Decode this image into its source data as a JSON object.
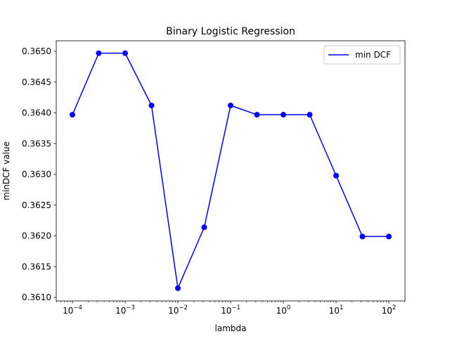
{
  "chart_data": {
    "type": "line",
    "title": "Binary Logistic Regression",
    "xlabel": "lambda",
    "ylabel": "minDCF value",
    "x_scale": "log",
    "x_tick_base": "10",
    "x_tick_exponents": [
      "−4",
      "−3",
      "−2",
      "−1",
      "0",
      "1",
      "2"
    ],
    "y_tick_labels": [
      "0.3610",
      "0.3615",
      "0.3620",
      "0.3625",
      "0.3630",
      "0.3635",
      "0.3640",
      "0.3645",
      "0.3650"
    ],
    "ylim": [
      0.3609,
      0.3652
    ],
    "legend_position": "top-right",
    "grid": false,
    "series": [
      {
        "name": "min DCF",
        "color": "#0000ff",
        "marker": "circle",
        "x": [
          0.0001,
          0.000316,
          0.001,
          0.00316,
          0.01,
          0.0316,
          0.1,
          0.316,
          1,
          3.16,
          10,
          31.6,
          100
        ],
        "y": [
          0.36397,
          0.36497,
          0.36497,
          0.36412,
          0.36115,
          0.36214,
          0.36412,
          0.36397,
          0.36397,
          0.36397,
          0.36298,
          0.36199,
          0.36199
        ]
      }
    ]
  }
}
